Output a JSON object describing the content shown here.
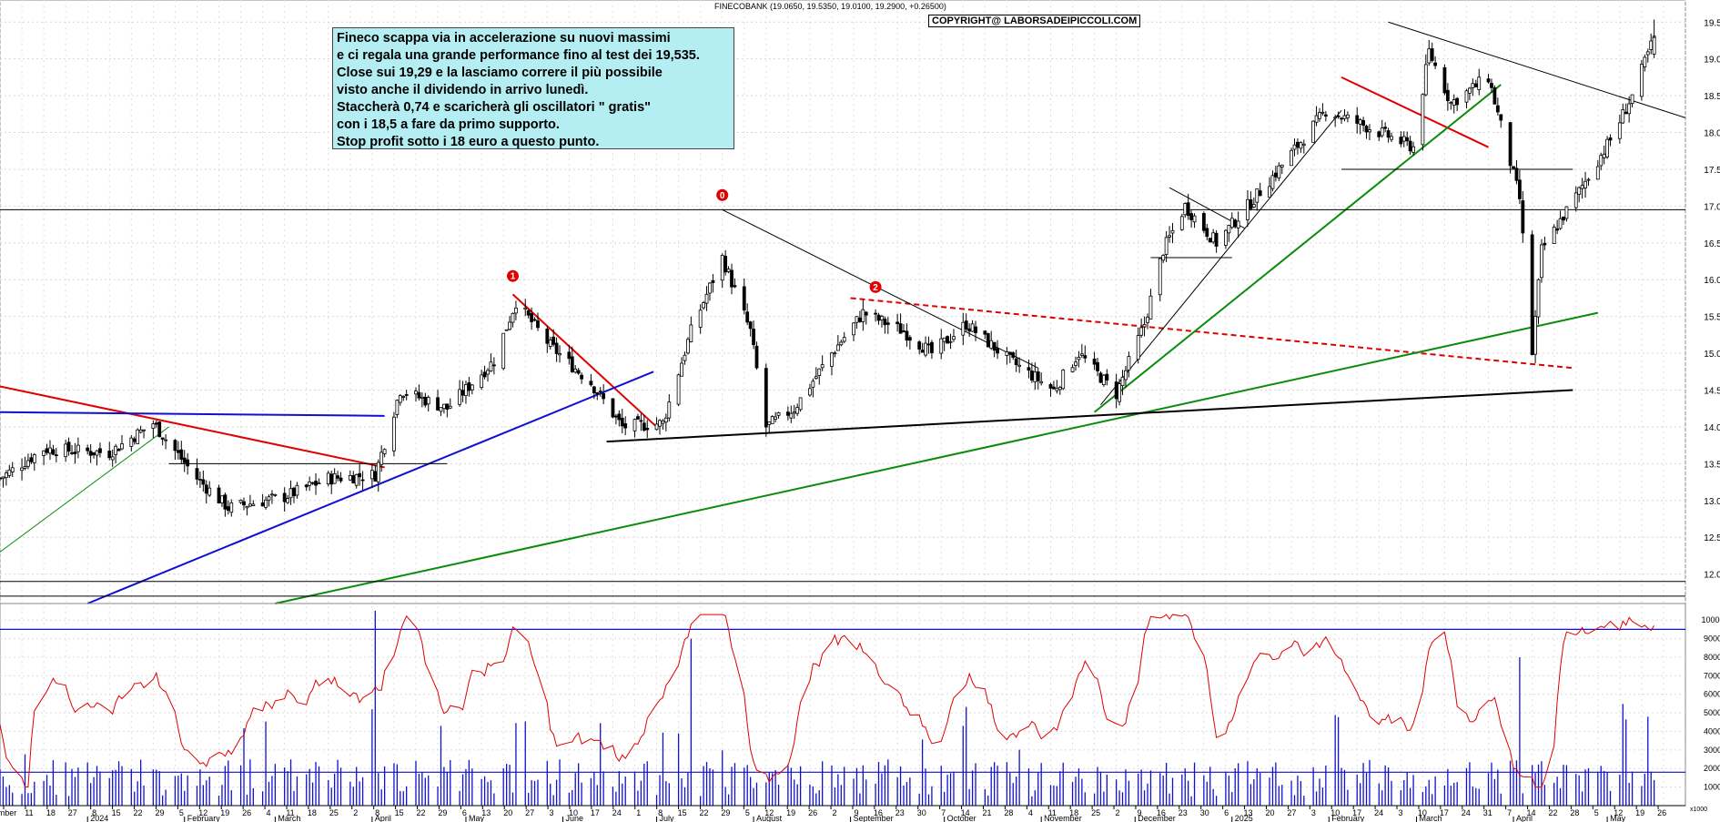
{
  "header": {
    "quote_text": "FINECOBANK (19.0650, 19.5350, 19.0100, 19.2900, +0.26500)",
    "copyright": "COPYRIGHT@ LABORSADEIPICCOLI.COM"
  },
  "comment_box": {
    "lines": [
      "Fineco scappa via in accelerazione su nuovi massimi",
      "e ci regala una grande performance fino al test dei 19,535.",
      "Close sui 19,29  e la lasciamo correre il più possibile",
      "visto anche il dividendo in arrivo lunedì.",
      " Staccherà 0,74 e scaricherà gli oscillatori \" gratis\"",
      "con i 18,5 a fare da primo supporto.",
      "Stop profit sotto i 18 euro a questo punto."
    ]
  },
  "markers": [
    {
      "label": "0",
      "color": "#e00000"
    },
    {
      "label": "1",
      "color": "#e00000"
    },
    {
      "label": "2",
      "color": "#e00000"
    }
  ],
  "axis_bottom": {
    "day_ticks": [
      "mber",
      "11",
      "18",
      "27",
      "8",
      "15",
      "22",
      "29",
      "5",
      "12",
      "19",
      "26",
      "4",
      "11",
      "18",
      "25",
      "2",
      "8",
      "15",
      "22",
      "29",
      "6",
      "13",
      "20",
      "27",
      "3",
      "10",
      "17",
      "24",
      "1",
      "8",
      "15",
      "22",
      "29",
      "5",
      "12",
      "19",
      "26",
      "2",
      "9",
      "16",
      "23",
      "30",
      "7",
      "14",
      "21",
      "28",
      "4",
      "11",
      "18",
      "25",
      "2",
      "9",
      "16",
      "23",
      "30",
      "6",
      "13",
      "20",
      "27",
      "3",
      "10",
      "17",
      "24",
      "3",
      "10",
      "17",
      "24",
      "31",
      "7",
      "14",
      "22",
      "28",
      "5",
      "12",
      "19",
      "26"
    ],
    "month_labels": [
      "2024",
      "February",
      "March",
      "April",
      "May",
      "June",
      "July",
      "August",
      "September",
      "October",
      "November",
      "December",
      "2025",
      "February",
      "March",
      "April",
      "May"
    ],
    "scale_box": "x1000"
  },
  "chart_data": [
    {
      "type": "candlestick",
      "title": "",
      "xlabel": "",
      "ylabel": "",
      "y_ticks": [
        12.0,
        12.5,
        13.0,
        13.5,
        14.0,
        14.5,
        15.0,
        15.5,
        16.0,
        16.5,
        17.0,
        17.5,
        18.0,
        18.5,
        19.0,
        19.5
      ],
      "ylim": [
        11.6,
        19.8
      ],
      "x_range": [
        "2023-12-04",
        "2025-05-26"
      ],
      "last_bar": {
        "open": 19.065,
        "high": 19.535,
        "low": 19.01,
        "close": 19.29,
        "change": 0.265
      },
      "close_path": [
        {
          "x": "2023-12-04",
          "close": 13.3
        },
        {
          "x": "2023-12-18",
          "close": 13.7
        },
        {
          "x": "2024-01-08",
          "close": 13.65
        },
        {
          "x": "2024-01-22",
          "close": 14.05
        },
        {
          "x": "2024-02-05",
          "close": 13.3
        },
        {
          "x": "2024-02-15",
          "close": 12.9
        },
        {
          "x": "2024-03-04",
          "close": 13.05
        },
        {
          "x": "2024-03-18",
          "close": 13.3
        },
        {
          "x": "2024-04-02",
          "close": 13.35
        },
        {
          "x": "2024-04-10",
          "close": 14.5
        },
        {
          "x": "2024-04-25",
          "close": 14.25
        },
        {
          "x": "2024-05-10",
          "close": 14.9
        },
        {
          "x": "2024-05-17",
          "close": 15.7
        },
        {
          "x": "2024-05-28",
          "close": 15.1
        },
        {
          "x": "2024-06-10",
          "close": 14.6
        },
        {
          "x": "2024-06-20",
          "close": 14.0
        },
        {
          "x": "2024-07-03",
          "close": 14.05
        },
        {
          "x": "2024-07-12",
          "close": 15.3
        },
        {
          "x": "2024-07-22",
          "close": 16.3
        },
        {
          "x": "2024-07-31",
          "close": 15.3
        },
        {
          "x": "2024-08-05",
          "close": 14.0
        },
        {
          "x": "2024-08-14",
          "close": 14.25
        },
        {
          "x": "2024-08-26",
          "close": 15.0
        },
        {
          "x": "2024-09-05",
          "close": 15.55
        },
        {
          "x": "2024-09-18",
          "close": 15.3
        },
        {
          "x": "2024-09-27",
          "close": 15.0
        },
        {
          "x": "2024-10-08",
          "close": 15.4
        },
        {
          "x": "2024-10-22",
          "close": 14.9
        },
        {
          "x": "2024-11-05",
          "close": 14.5
        },
        {
          "x": "2024-11-13",
          "close": 15.0
        },
        {
          "x": "2024-11-25",
          "close": 14.45
        },
        {
          "x": "2024-12-04",
          "close": 15.4
        },
        {
          "x": "2024-12-10",
          "close": 16.4
        },
        {
          "x": "2024-12-17",
          "close": 17.0
        },
        {
          "x": "2024-12-27",
          "close": 16.5
        },
        {
          "x": "2025-01-14",
          "close": 17.4
        },
        {
          "x": "2025-01-31",
          "close": 18.3
        },
        {
          "x": "2025-02-12",
          "close": 18.1
        },
        {
          "x": "2025-02-28",
          "close": 17.8
        },
        {
          "x": "2025-03-05",
          "close": 19.1
        },
        {
          "x": "2025-03-12",
          "close": 18.4
        },
        {
          "x": "2025-03-24",
          "close": 18.75
        },
        {
          "x": "2025-04-03",
          "close": 17.1
        },
        {
          "x": "2025-04-07",
          "close": 15.0
        },
        {
          "x": "2025-04-10",
          "close": 16.4
        },
        {
          "x": "2025-04-22",
          "close": 17.2
        },
        {
          "x": "2025-05-02",
          "close": 17.9
        },
        {
          "x": "2025-05-09",
          "close": 18.5
        },
        {
          "x": "2025-05-16",
          "close": 19.29
        }
      ],
      "trendlines": [
        {
          "color": "#e00000",
          "from": {
            "x": "2023-12-04",
            "y": 14.55
          },
          "to": {
            "x": "2024-04-05",
            "y": 13.45
          }
        },
        {
          "color": "#e00000",
          "from": {
            "x": "2024-05-16",
            "y": 15.8
          },
          "to": {
            "x": "2024-07-01",
            "y": 14.0
          }
        },
        {
          "color": "#e00000",
          "from": {
            "x": "2025-02-05",
            "y": 18.75
          },
          "to": {
            "x": "2025-03-24",
            "y": 17.8
          }
        },
        {
          "color": "#e00000",
          "dashed": true,
          "from": {
            "x": "2024-09-01",
            "y": 15.75
          },
          "to": {
            "x": "2025-04-20",
            "y": 14.8
          }
        },
        {
          "color": "#1010d0",
          "from": {
            "x": "2024-01-01",
            "y": 11.6
          },
          "to": {
            "x": "2024-06-30",
            "y": 14.75
          }
        },
        {
          "color": "#1010d0",
          "from": {
            "x": "2023-12-04",
            "y": 14.2
          },
          "to": {
            "x": "2024-04-05",
            "y": 14.15
          }
        },
        {
          "color": "#0a8c0a",
          "width": 2,
          "from": {
            "x": "2024-03-01",
            "y": 11.6
          },
          "to": {
            "x": "2025-04-28",
            "y": 15.55
          }
        },
        {
          "color": "#0a8c0a",
          "width": 2,
          "from": {
            "x": "2024-11-18",
            "y": 14.2
          },
          "to": {
            "x": "2025-03-28",
            "y": 18.65
          }
        },
        {
          "color": "#0a8c0a",
          "width": 1,
          "from": {
            "x": "2023-12-04",
            "y": 12.3
          },
          "to": {
            "x": "2024-01-27",
            "y": 14.0
          }
        },
        {
          "color": "#000000",
          "from": {
            "x": "2024-06-15",
            "y": 13.8
          },
          "to": {
            "x": "2025-04-20",
            "y": 14.5
          }
        },
        {
          "color": "#000000",
          "width": 1,
          "from": {
            "x": "2024-07-22",
            "y": 16.95
          },
          "to": {
            "x": "2024-10-31",
            "y": 14.8
          }
        },
        {
          "color": "#000000",
          "width": 1,
          "from": {
            "x": "2025-02-20",
            "y": 19.5
          },
          "to": {
            "x": "2025-05-26",
            "y": 18.2
          }
        },
        {
          "color": "#000000",
          "width": 1,
          "from": {
            "x": "2024-11-20",
            "y": 14.3
          },
          "to": {
            "x": "2025-02-05",
            "y": 18.3
          }
        },
        {
          "color": "#000000",
          "width": 1,
          "from": {
            "x": "2024-12-12",
            "y": 17.25
          },
          "to": {
            "x": "2025-01-05",
            "y": 16.7
          }
        },
        {
          "color": "#000000",
          "width": 1,
          "from": {
            "x": "2024-12-06",
            "y": 16.3
          },
          "to": {
            "x": "2025-01-01",
            "y": 16.3
          }
        },
        {
          "color": "#000000",
          "width": 1,
          "from": {
            "x": "2024-01-27",
            "y": 13.5
          },
          "to": {
            "x": "2024-04-25",
            "y": 13.5
          }
        },
        {
          "color": "#000000",
          "width": 1,
          "from": {
            "x": "2025-02-05",
            "y": 17.5
          },
          "to": {
            "x": "2025-04-20",
            "y": 17.5
          }
        },
        {
          "color": "#000000",
          "width": 1,
          "from": {
            "x": "2023-12-04",
            "y": 16.95
          },
          "to": {
            "x": "2025-05-26",
            "y": 16.95
          }
        },
        {
          "color": "#000000",
          "width": 1,
          "from": {
            "x": "2023-12-04",
            "y": 11.9
          },
          "to": {
            "x": "2025-05-26",
            "y": 11.9
          }
        },
        {
          "color": "#000000",
          "width": 1,
          "from": {
            "x": "2023-12-04",
            "y": 11.7
          },
          "to": {
            "x": "2025-05-26",
            "y": 11.7
          }
        }
      ]
    },
    {
      "type": "bar+line",
      "title": "",
      "y_ticks": [
        1000,
        2000,
        3000,
        4000,
        5000,
        6000,
        7000,
        8000,
        9000,
        10000
      ],
      "ylim": [
        0,
        10500
      ],
      "series": [
        {
          "type": "bar",
          "color": "#1010d0",
          "typical_range": [
            500,
            2500
          ],
          "peaks": [
            {
              "x": "2024-04-02",
              "y": 10500
            },
            {
              "x": "2024-07-12",
              "y": 9000
            },
            {
              "x": "2025-04-03",
              "y": 8000
            }
          ]
        },
        {
          "type": "line",
          "color": "#e00000",
          "oscillator_range": [
            1000,
            10300
          ]
        }
      ],
      "reference_lines": [
        {
          "color": "#1010d0",
          "y": 9500
        },
        {
          "color": "#1010d0",
          "y": 1800
        }
      ]
    }
  ]
}
